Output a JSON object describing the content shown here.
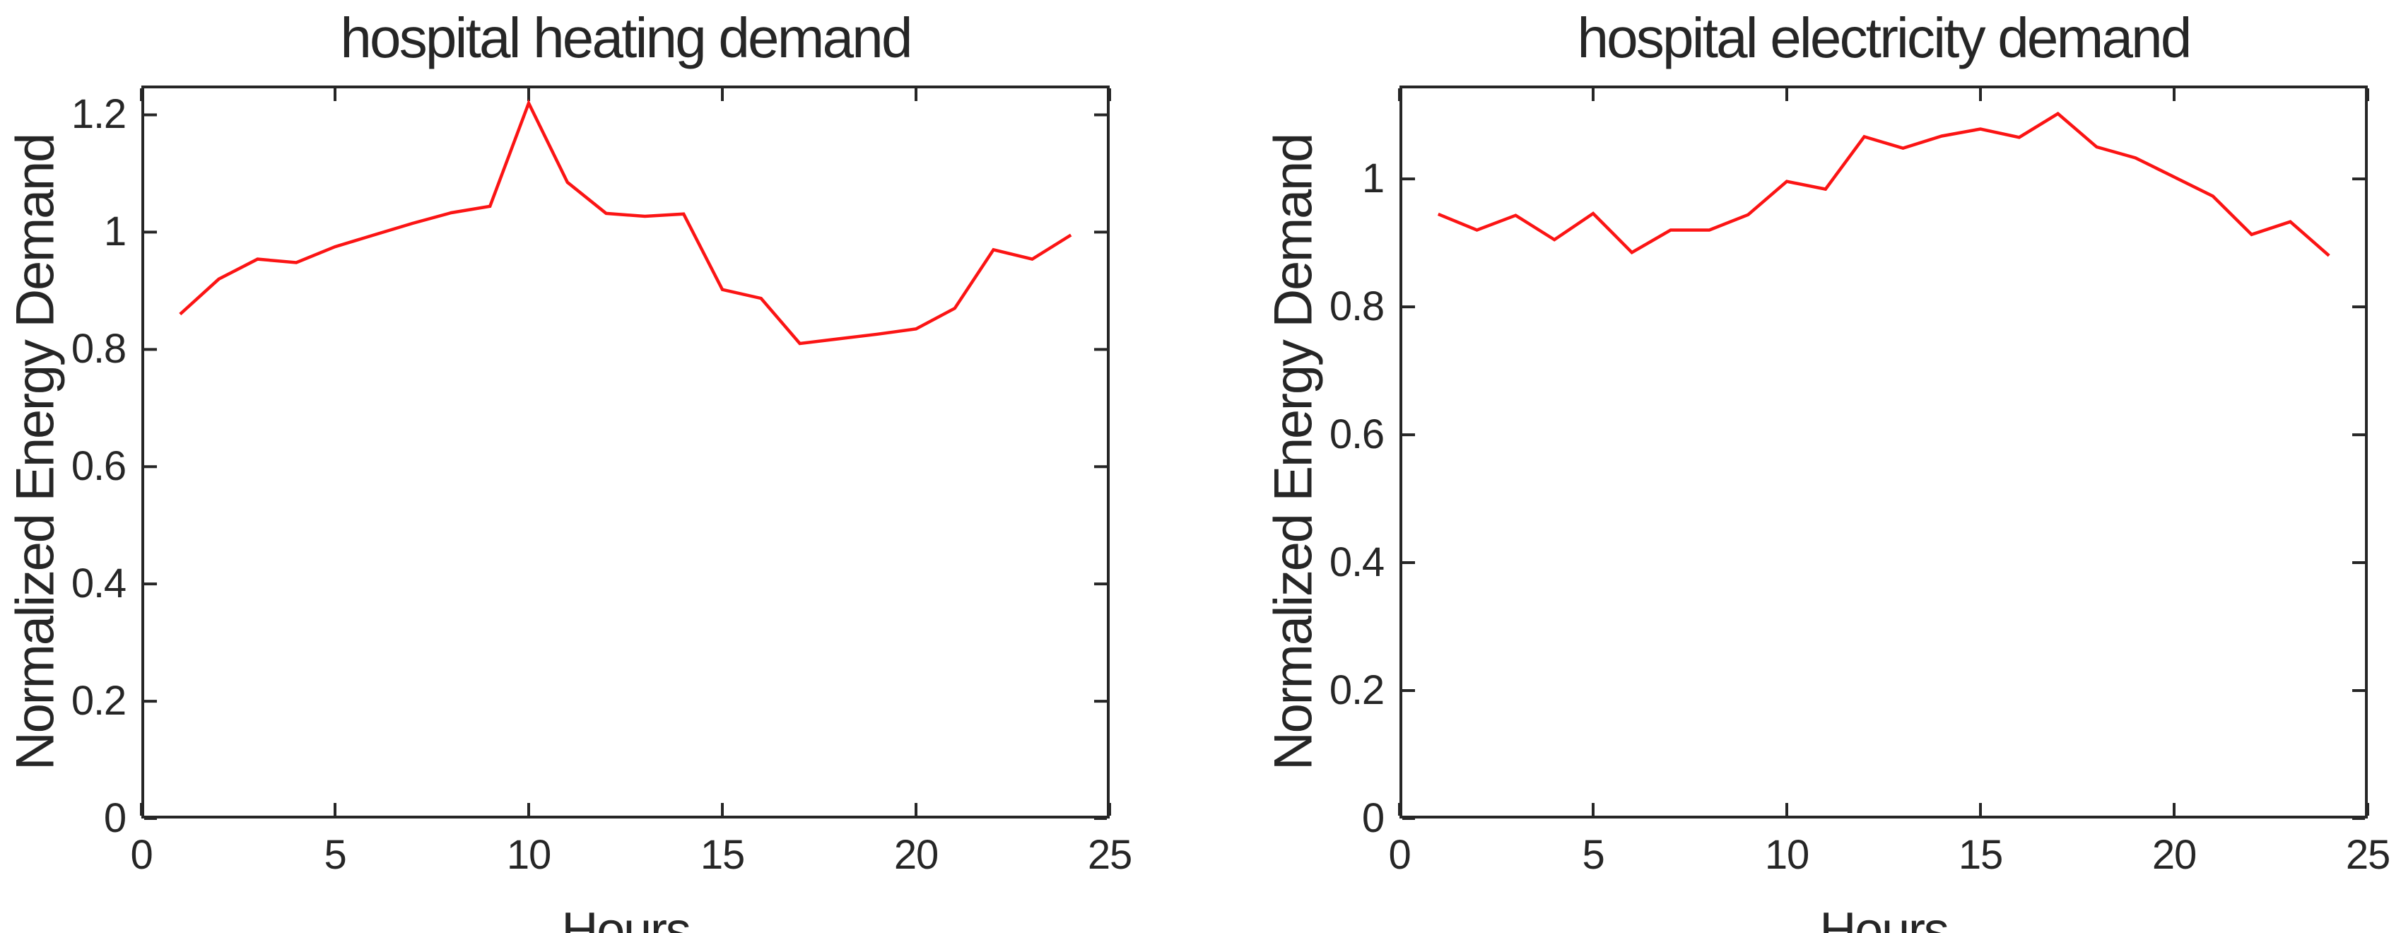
{
  "page": {
    "background": "#ffffff",
    "text_color": "#262626",
    "frame_color": "#262626"
  },
  "chart_data": [
    {
      "type": "line",
      "title": "hospital heating demand",
      "xlabel": "Hours",
      "ylabel": "Normalized Energy Demand",
      "legend": null,
      "grid": false,
      "box": true,
      "line_color": "#fb1414",
      "xlim": [
        0,
        25
      ],
      "ylim": [
        0,
        1.25
      ],
      "x_ticks": [
        0,
        5,
        10,
        15,
        20,
        25
      ],
      "x_tick_labels": [
        "0",
        "5",
        "10",
        "15",
        "20",
        "25"
      ],
      "y_ticks": [
        0,
        0.2,
        0.4,
        0.6,
        0.8,
        1,
        1.2
      ],
      "y_tick_labels": [
        "0",
        "0.2",
        "0.4",
        "0.6",
        "0.8",
        "1",
        "1.2"
      ],
      "x": [
        1,
        2,
        3,
        4,
        5,
        6,
        7,
        8,
        9,
        10,
        11,
        12,
        13,
        14,
        15,
        16,
        17,
        18,
        19,
        20,
        21,
        22,
        23,
        24
      ],
      "y": [
        0.86,
        0.92,
        0.954,
        0.948,
        0.975,
        0.995,
        1.015,
        1.033,
        1.044,
        1.22,
        1.085,
        1.032,
        1.027,
        1.031,
        0.902,
        0.887,
        0.81,
        0.818,
        0.826,
        0.835,
        0.87,
        0.97,
        0.954,
        0.995
      ]
    },
    {
      "type": "line",
      "title": "hospital electricity demand",
      "xlabel": "Hours",
      "ylabel": "Normalized Energy Demand",
      "legend": null,
      "grid": false,
      "box": true,
      "line_color": "#fb1414",
      "xlim": [
        0,
        25
      ],
      "ylim": [
        0,
        1.146
      ],
      "x_ticks": [
        0,
        5,
        10,
        15,
        20,
        25
      ],
      "x_tick_labels": [
        "0",
        "5",
        "10",
        "15",
        "20",
        "25"
      ],
      "y_ticks": [
        0,
        0.2,
        0.4,
        0.6,
        0.8,
        1
      ],
      "y_tick_labels": [
        "0",
        "0.2",
        "0.4",
        "0.6",
        "0.8",
        "1"
      ],
      "x": [
        1,
        2,
        3,
        4,
        5,
        6,
        7,
        8,
        9,
        10,
        11,
        12,
        13,
        14,
        15,
        16,
        17,
        18,
        19,
        20,
        21,
        22,
        23,
        24
      ],
      "y": [
        0.945,
        0.92,
        0.943,
        0.905,
        0.946,
        0.885,
        0.92,
        0.92,
        0.944,
        0.996,
        0.984,
        1.066,
        1.048,
        1.067,
        1.078,
        1.065,
        1.102,
        1.05,
        1.033,
        1.003,
        0.973,
        0.913,
        0.933,
        0.88
      ]
    }
  ]
}
